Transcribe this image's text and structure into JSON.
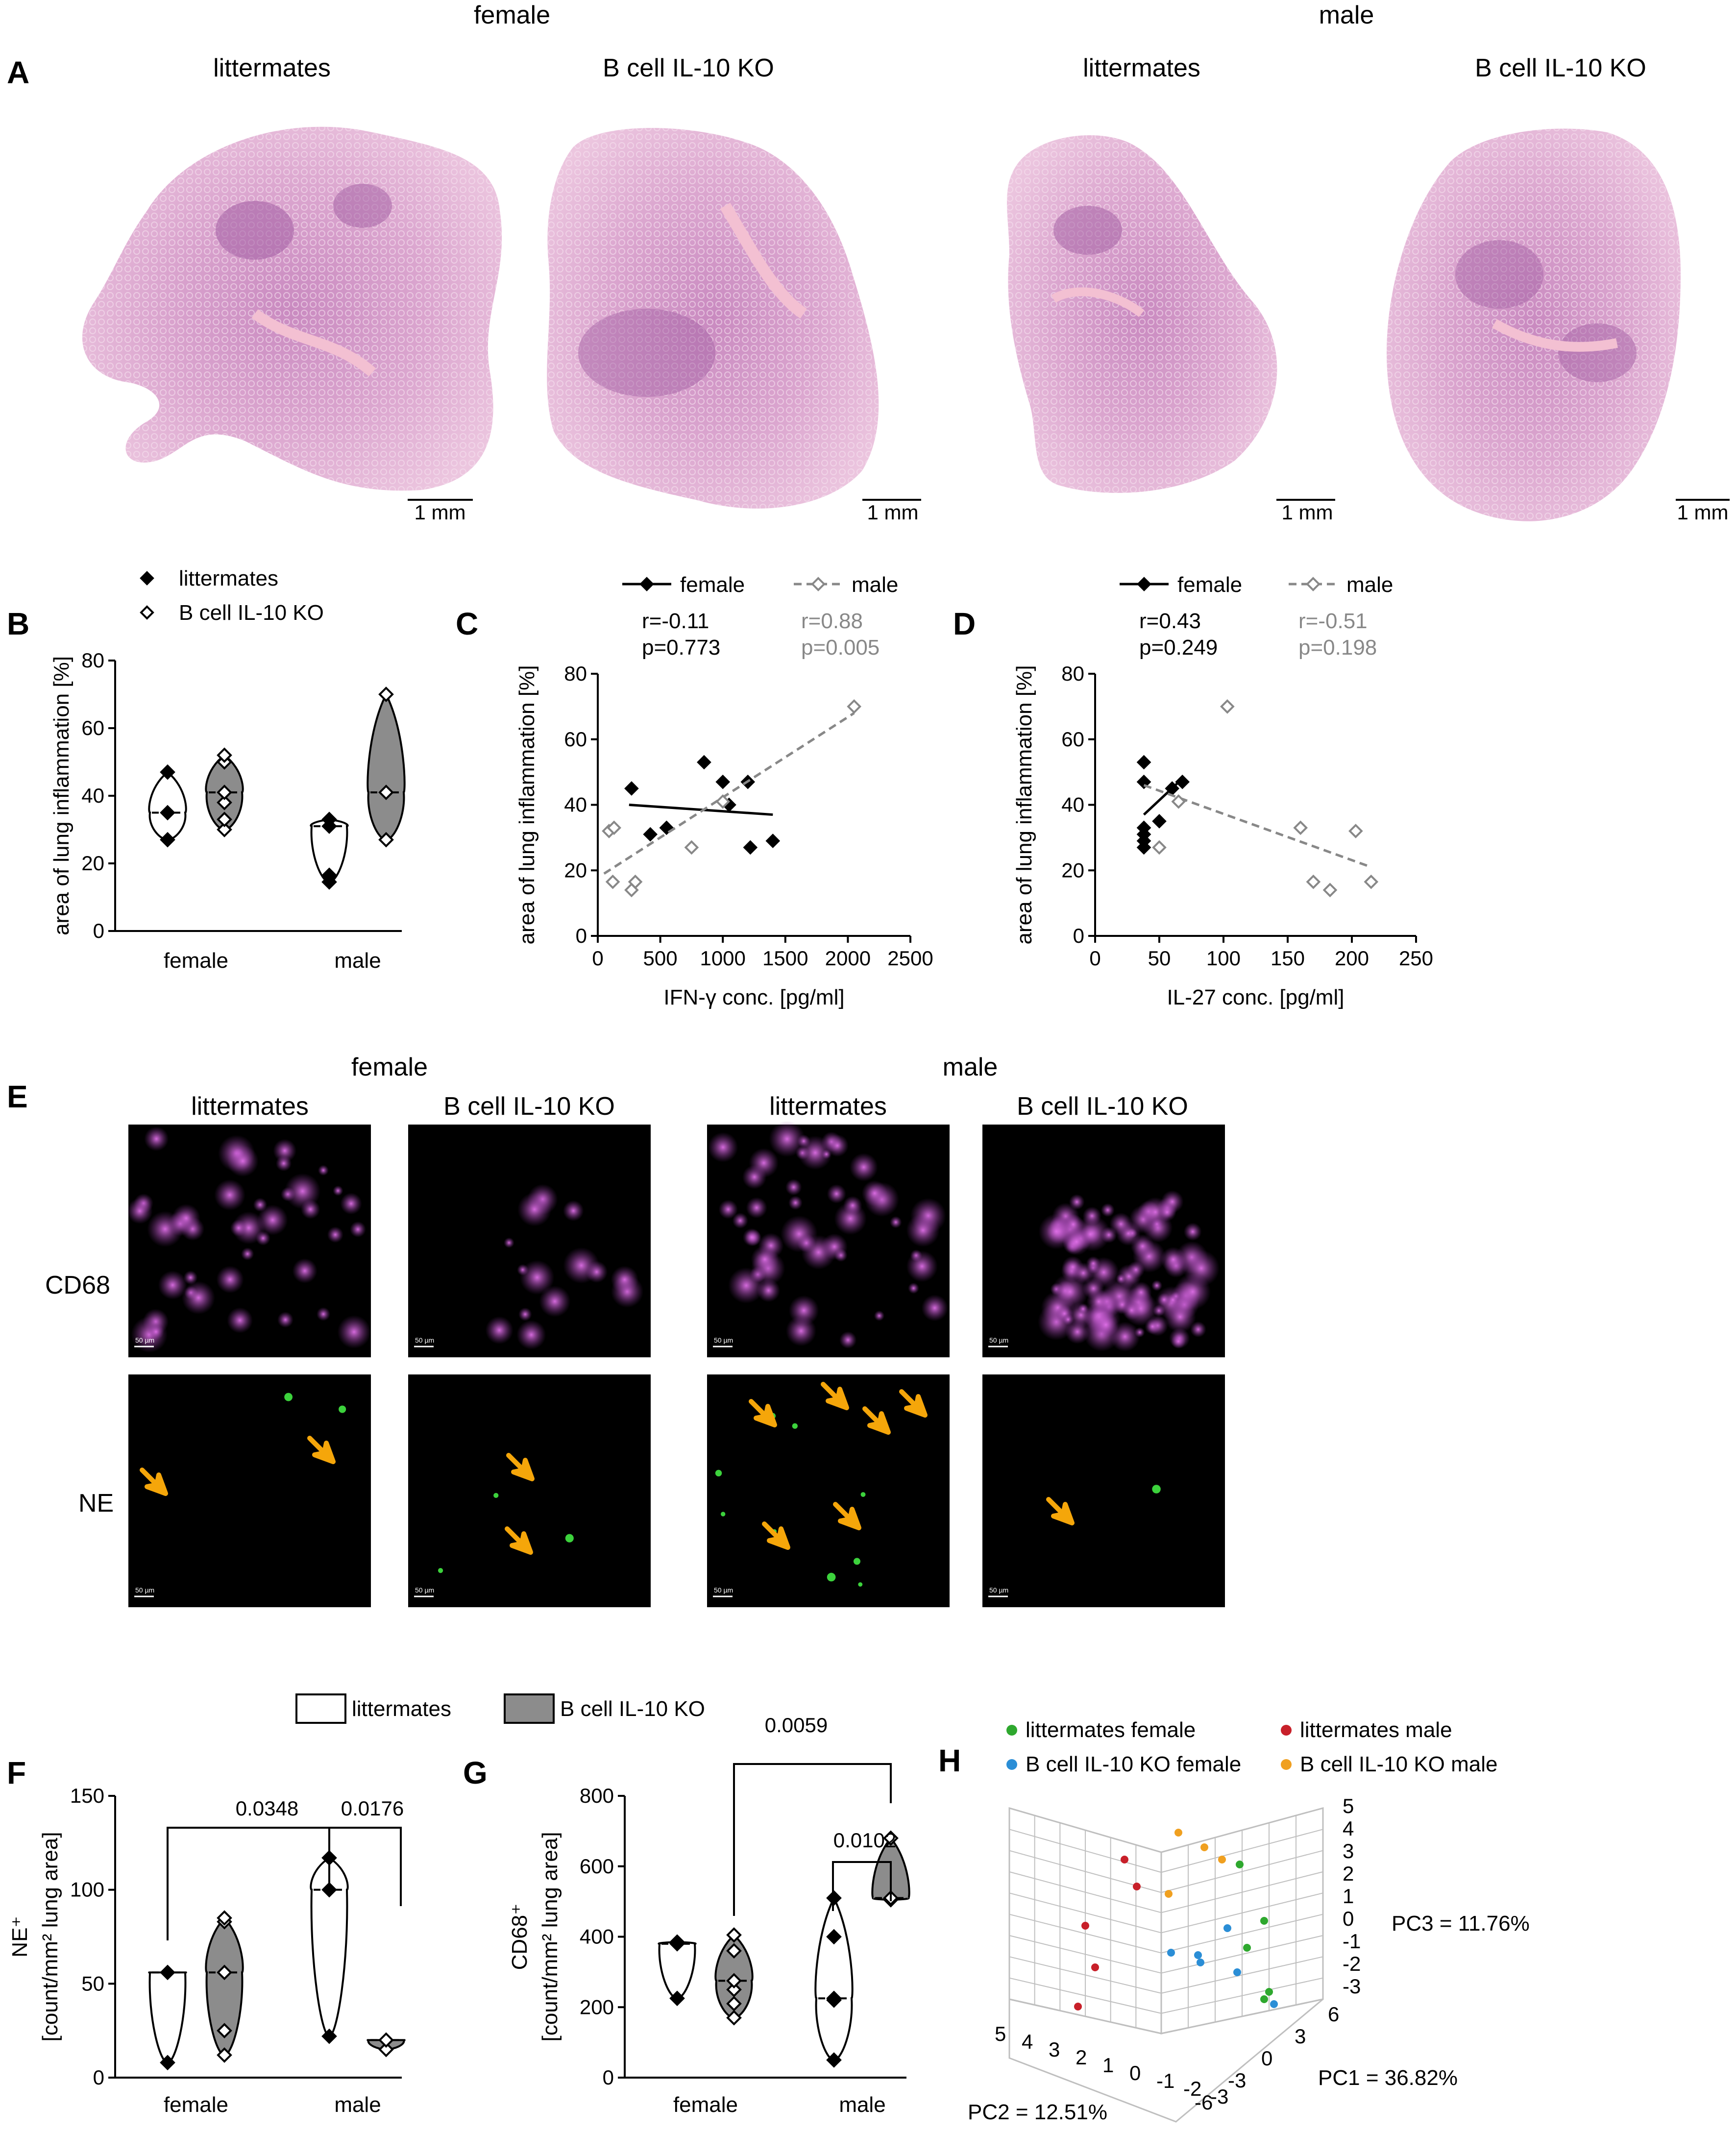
{
  "panels": {
    "A": {
      "letter": "A",
      "group_headers": [
        "female",
        "male"
      ],
      "columns": [
        "littermates",
        "B cell IL-10 KO",
        "littermates",
        "B cell IL-10 KO"
      ],
      "scale_bar": "1 mm"
    },
    "E": {
      "letter": "E",
      "group_headers": [
        "female",
        "male"
      ],
      "columns": [
        "littermates",
        "B cell IL-10 KO",
        "littermates",
        "B cell IL-10 KO"
      ],
      "rows": [
        "CD68",
        "NE"
      ],
      "scale_bar": "50 µm",
      "colors": {
        "CD68": "#c050c8",
        "NE": "#3cd23c",
        "arrow": "#f5a60a"
      }
    },
    "FG_legend": [
      "littermates",
      "B cell IL-10 KO"
    ],
    "H": {
      "letter": "H",
      "legend": [
        "littermates female",
        "littermates male",
        "B cell IL-10 KO female",
        "B cell IL-10 KO male"
      ],
      "legend_colors": [
        "#2ea82e",
        "#c8202a",
        "#2b8ed6",
        "#f0a020"
      ],
      "pc_labels": {
        "pc1": "PC1 = 36.82%",
        "pc2": "PC2 = 12.51%",
        "pc3": "PC3 = 11.76%"
      },
      "z_ticks": [
        "5",
        "4",
        "3",
        "2",
        "1",
        "0",
        "-1",
        "-2",
        "-3"
      ],
      "pc2_ticks": [
        "5",
        "4",
        "3",
        "2",
        "1",
        "0",
        "-1",
        "-2",
        "-3"
      ],
      "pc1_ticks": [
        "6",
        "3",
        "0",
        "-3",
        "-6"
      ]
    }
  },
  "chart_data": [
    {
      "id": "B",
      "type": "violin",
      "letter": "B",
      "categories": [
        "female",
        "male"
      ],
      "legend": [
        "littermates",
        "B cell IL-10 KO"
      ],
      "ylabel": "area of lung inflammation [%]",
      "ylim": [
        0,
        80
      ],
      "yticks": [
        "0",
        "20",
        "40",
        "60",
        "80"
      ],
      "series": [
        {
          "name": "littermates",
          "points": [
            [
              0,
              27
            ],
            [
              0,
              35
            ],
            [
              0,
              47
            ],
            [
              1,
              14.5
            ],
            [
              1,
              16.5
            ],
            [
              1,
              31
            ],
            [
              1,
              33
            ]
          ]
        },
        {
          "name": "B cell IL-10 KO",
          "points": [
            [
              0,
              30
            ],
            [
              0,
              33
            ],
            [
              0,
              38
            ],
            [
              0,
              41
            ],
            [
              0,
              50
            ],
            [
              0,
              52
            ],
            [
              1,
              27
            ],
            [
              1,
              41
            ],
            [
              1,
              70
            ]
          ]
        }
      ]
    },
    {
      "id": "C",
      "type": "scatter",
      "letter": "C",
      "xlabel": "IFN-γ conc. [pg/ml]",
      "ylabel": "area of lung inflammation [%]",
      "xlim": [
        0,
        2500
      ],
      "ylim": [
        0,
        80
      ],
      "xticks": [
        "0",
        "500",
        "1000",
        "1500",
        "2000",
        "2500"
      ],
      "yticks": [
        "0",
        "20",
        "40",
        "60",
        "80"
      ],
      "series": [
        {
          "name": "female",
          "stats": [
            "r=-0.11",
            "p=0.773"
          ],
          "points": [
            [
              270,
              45
            ],
            [
              420,
              31
            ],
            [
              550,
              33
            ],
            [
              850,
              53
            ],
            [
              1000,
              47
            ],
            [
              1050,
              40
            ],
            [
              1200,
              47
            ],
            [
              1220,
              27
            ],
            [
              1400,
              29
            ]
          ],
          "fit": [
            [
              250,
              40
            ],
            [
              1400,
              37
            ]
          ]
        },
        {
          "name": "male",
          "stats": [
            "r=0.88",
            "p=0.005"
          ],
          "points": [
            [
              90,
              32
            ],
            [
              130,
              33
            ],
            [
              120,
              16.5
            ],
            [
              270,
              14
            ],
            [
              300,
              16.5
            ],
            [
              750,
              27
            ],
            [
              1000,
              41
            ],
            [
              2050,
              70
            ]
          ],
          "fit": [
            [
              50,
              19
            ],
            [
              2050,
              68
            ]
          ]
        }
      ]
    },
    {
      "id": "D",
      "type": "scatter",
      "letter": "D",
      "xlabel": "IL-27 conc. [pg/ml]",
      "ylabel": "area of lung inflammation [%]",
      "xlim": [
        0,
        250
      ],
      "ylim": [
        0,
        80
      ],
      "xticks": [
        "0",
        "50",
        "100",
        "150",
        "200",
        "250"
      ],
      "yticks": [
        "0",
        "20",
        "40",
        "60",
        "80"
      ],
      "series": [
        {
          "name": "female",
          "stats": [
            "r=0.43",
            "p=0.249"
          ],
          "points": [
            [
              38,
              53
            ],
            [
              38,
              47
            ],
            [
              38,
              33
            ],
            [
              38,
              31
            ],
            [
              38,
              27
            ],
            [
              38,
              29
            ],
            [
              50,
              35
            ],
            [
              60,
              45
            ],
            [
              68,
              47
            ]
          ],
          "fit": [
            [
              38,
              37
            ],
            [
              68,
              48
            ]
          ]
        },
        {
          "name": "male",
          "stats": [
            "r=-0.51",
            "p=0.198"
          ],
          "points": [
            [
              50,
              27
            ],
            [
              65,
              41
            ],
            [
              103,
              70
            ],
            [
              160,
              33
            ],
            [
              170,
              16.5
            ],
            [
              183,
              14
            ],
            [
              203,
              32
            ],
            [
              215,
              16.5
            ]
          ],
          "fit": [
            [
              38,
              46
            ],
            [
              215,
              21
            ]
          ]
        }
      ]
    },
    {
      "id": "F",
      "type": "violin",
      "letter": "F",
      "categories": [
        "female",
        "male"
      ],
      "ylabel": "NE⁺ [count/mm² lung area]",
      "ylim": [
        0,
        150
      ],
      "yticks": [
        "0",
        "50",
        "100",
        "150"
      ],
      "series": [
        {
          "name": "littermates",
          "points": [
            [
              0,
              8
            ],
            [
              0,
              56
            ],
            [
              1,
              22
            ],
            [
              1,
              100
            ],
            [
              1,
              117
            ]
          ]
        },
        {
          "name": "B cell IL-10 KO",
          "points": [
            [
              0,
              12
            ],
            [
              0,
              25
            ],
            [
              0,
              56
            ],
            [
              0,
              83
            ],
            [
              0,
              85
            ],
            [
              1,
              15
            ],
            [
              1,
              20
            ]
          ]
        }
      ],
      "annotations": [
        {
          "text": "0.0348",
          "from": [
            0,
            0
          ],
          "to": [
            1,
            0
          ]
        },
        {
          "text": "0.0176",
          "from": [
            1,
            0
          ],
          "to": [
            1,
            1
          ]
        }
      ]
    },
    {
      "id": "G",
      "type": "violin",
      "letter": "G",
      "categories": [
        "female",
        "male"
      ],
      "ylabel": "CD68⁺ [count/mm² lung area]",
      "ylim": [
        0,
        800
      ],
      "yticks": [
        "0",
        "200",
        "400",
        "600",
        "800"
      ],
      "series": [
        {
          "name": "littermates",
          "points": [
            [
              0,
              225
            ],
            [
              0,
              380
            ],
            [
              0,
              385
            ],
            [
              1,
              50
            ],
            [
              1,
              220
            ],
            [
              1,
              225
            ],
            [
              1,
              400
            ],
            [
              1,
              510
            ]
          ]
        },
        {
          "name": "B cell IL-10 KO",
          "points": [
            [
              0,
              170
            ],
            [
              0,
              210
            ],
            [
              0,
              250
            ],
            [
              0,
              275
            ],
            [
              0,
              360
            ],
            [
              0,
              405
            ],
            [
              1,
              505
            ],
            [
              1,
              510
            ],
            [
              1,
              680
            ]
          ]
        }
      ],
      "annotations": [
        {
          "text": "0.0102",
          "from": [
            1,
            0
          ],
          "to": [
            1,
            1
          ]
        },
        {
          "text": "0.0059",
          "from": [
            0,
            1
          ],
          "to": [
            1,
            1
          ]
        }
      ]
    }
  ]
}
